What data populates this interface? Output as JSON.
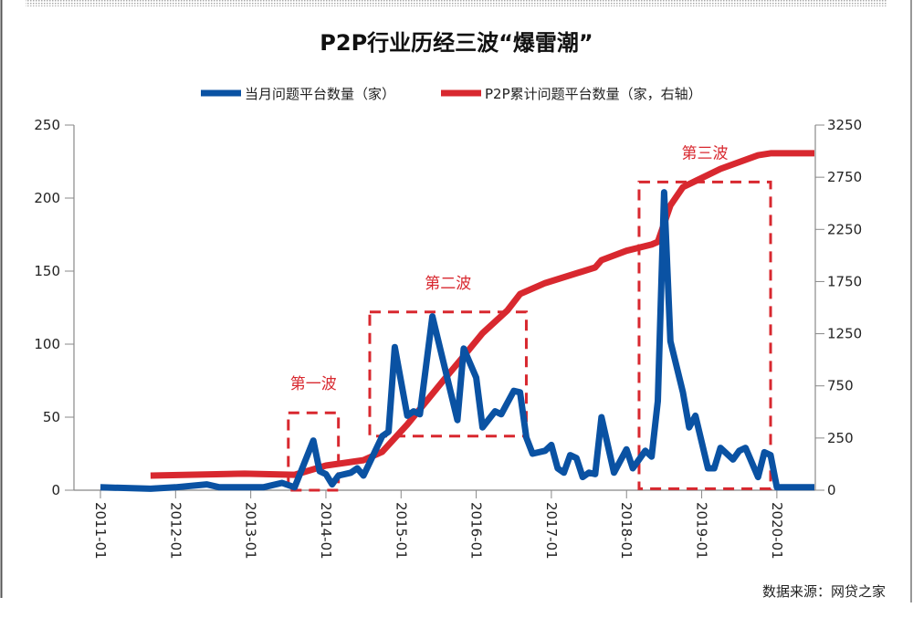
{
  "chart_data": {
    "type": "line",
    "title": "P2P行业历经三波“爆雷潮”",
    "legend_position": "top",
    "grid": false,
    "source": "数据来源：网贷之家",
    "x_ticks": [
      "2011-01",
      "2012-01",
      "2013-01",
      "2014-01",
      "2015-01",
      "2016-01",
      "2017-01",
      "2018-01",
      "2019-01",
      "2020-01"
    ],
    "x_range": [
      "2011-01",
      "2020-07"
    ],
    "left_axis": {
      "ylim": [
        0,
        250
      ],
      "ticks": [
        "0",
        "50",
        "100",
        "150",
        "200",
        "250"
      ]
    },
    "right_axis": {
      "ticks": [
        "0",
        "250",
        "750",
        "1250",
        "1750",
        "2250",
        "2750",
        "3250"
      ]
    },
    "series": [
      {
        "name": "当月问题平台数量（家）",
        "axis": "left",
        "color": "#0a52a3",
        "points": [
          [
            "2011-01",
            2
          ],
          [
            "2011-09",
            1
          ],
          [
            "2012-01",
            2
          ],
          [
            "2012-06",
            4
          ],
          [
            "2012-08",
            2
          ],
          [
            "2013-01",
            2
          ],
          [
            "2013-03",
            2
          ],
          [
            "2013-06",
            5
          ],
          [
            "2013-08",
            2
          ],
          [
            "2013-11",
            34
          ],
          [
            "2013-12",
            13
          ],
          [
            "2014-01",
            11
          ],
          [
            "2014-02",
            4
          ],
          [
            "2014-03",
            10
          ],
          [
            "2014-05",
            12
          ],
          [
            "2014-06",
            15
          ],
          [
            "2014-07",
            10
          ],
          [
            "2014-10",
            37
          ],
          [
            "2014-11",
            40
          ],
          [
            "2014-12",
            98
          ],
          [
            "2015-02",
            51
          ],
          [
            "2015-03",
            54
          ],
          [
            "2015-04",
            52
          ],
          [
            "2015-06",
            119
          ],
          [
            "2015-10",
            48
          ],
          [
            "2015-11",
            97
          ],
          [
            "2016-01",
            77
          ],
          [
            "2016-02",
            43
          ],
          [
            "2016-04",
            54
          ],
          [
            "2016-05",
            52
          ],
          [
            "2016-07",
            68
          ],
          [
            "2016-08",
            67
          ],
          [
            "2016-09",
            36
          ],
          [
            "2016-10",
            25
          ],
          [
            "2016-12",
            27
          ],
          [
            "2017-01",
            31
          ],
          [
            "2017-02",
            15
          ],
          [
            "2017-03",
            12
          ],
          [
            "2017-04",
            24
          ],
          [
            "2017-05",
            22
          ],
          [
            "2017-06",
            9
          ],
          [
            "2017-07",
            12
          ],
          [
            "2017-08",
            11
          ],
          [
            "2017-09",
            50
          ],
          [
            "2017-11",
            12
          ],
          [
            "2018-01",
            28
          ],
          [
            "2018-02",
            15
          ],
          [
            "2018-04",
            27
          ],
          [
            "2018-05",
            23
          ],
          [
            "2018-06",
            61
          ],
          [
            "2018-07",
            204
          ],
          [
            "2018-08",
            102
          ],
          [
            "2018-10",
            67
          ],
          [
            "2018-11",
            43
          ],
          [
            "2018-12",
            51
          ],
          [
            "2019-02",
            15
          ],
          [
            "2019-03",
            15
          ],
          [
            "2019-04",
            29
          ],
          [
            "2019-06",
            21
          ],
          [
            "2019-07",
            27
          ],
          [
            "2019-08",
            29
          ],
          [
            "2019-10",
            9
          ],
          [
            "2019-11",
            26
          ],
          [
            "2019-12",
            24
          ],
          [
            "2020-01",
            2
          ],
          [
            "2020-07",
            2
          ]
        ]
      },
      {
        "name": "P2P累计问题平台数量（家，右轴）",
        "axis": "right",
        "color": "#d8282f",
        "points": [
          [
            "2011-09",
            70
          ],
          [
            "2012-12",
            79
          ],
          [
            "2013-08",
            74
          ],
          [
            "2014-01",
            118
          ],
          [
            "2014-07",
            144
          ],
          [
            "2014-10",
            184
          ],
          [
            "2015-02",
            380
          ],
          [
            "2015-05",
            600
          ],
          [
            "2015-08",
            820
          ],
          [
            "2015-11",
            1035
          ],
          [
            "2016-02",
            1255
          ],
          [
            "2016-06",
            1475
          ],
          [
            "2016-08",
            1630
          ],
          [
            "2016-12",
            1735
          ],
          [
            "2017-08",
            1885
          ],
          [
            "2017-09",
            1955
          ],
          [
            "2018-01",
            2045
          ],
          [
            "2018-05",
            2105
          ],
          [
            "2018-06",
            2130
          ],
          [
            "2018-08",
            2480
          ],
          [
            "2018-10",
            2655
          ],
          [
            "2019-04",
            2830
          ],
          [
            "2019-10",
            2960
          ],
          [
            "2019-12",
            2980
          ],
          [
            "2020-07",
            2980
          ]
        ]
      }
    ],
    "annotations": [
      {
        "label": "第一波",
        "x_range": [
          "2013-07",
          "2014-03"
        ],
        "y_range": [
          0,
          53
        ]
      },
      {
        "label": "第二波",
        "x_range": [
          "2014-08",
          "2016-09"
        ],
        "y_range": [
          37,
          122
        ]
      },
      {
        "label": "第三波",
        "x_range": [
          "2018-03",
          "2019-12"
        ],
        "y_range": [
          1,
          211
        ]
      }
    ]
  }
}
